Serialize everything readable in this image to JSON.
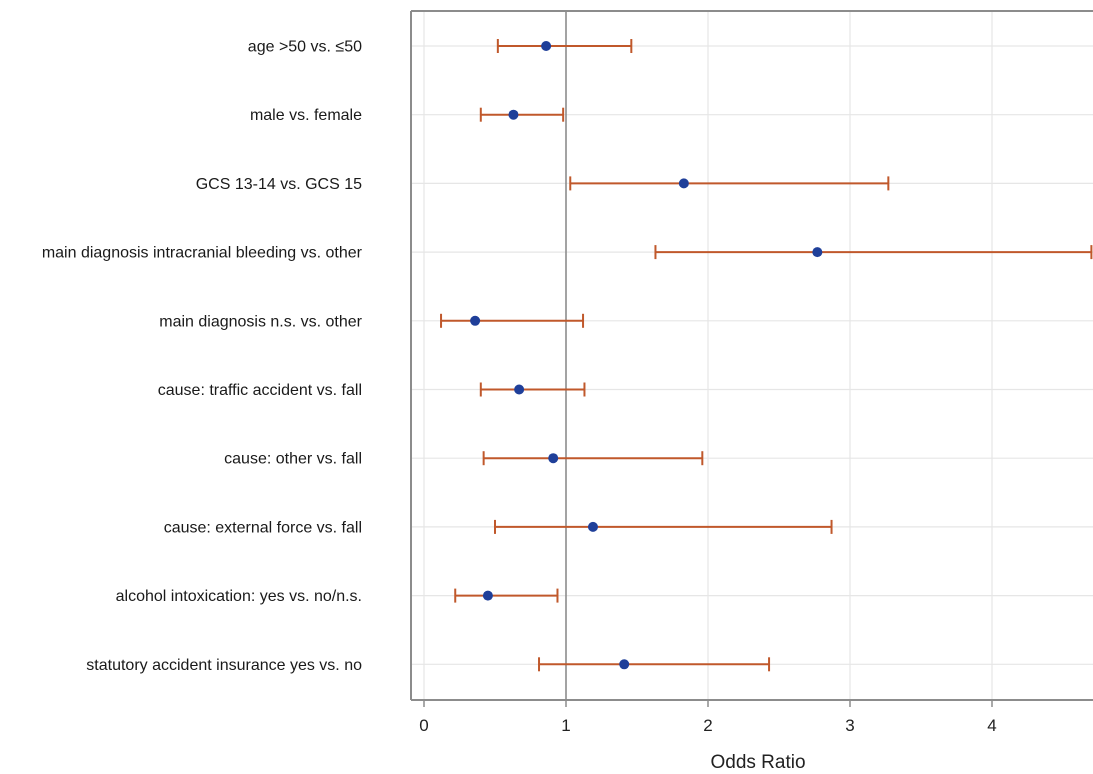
{
  "chart_data": {
    "type": "forest",
    "title": "",
    "xlabel": "Odds Ratio",
    "ylabel": "",
    "xlim": [
      -0.1,
      4.7
    ],
    "x_ticks": [
      0,
      1,
      2,
      3,
      4
    ],
    "x_tick_labels": [
      "0",
      "1",
      "2",
      "3",
      "4"
    ],
    "reference_line": 1,
    "grid": true,
    "legend": "none",
    "rows": [
      {
        "label": "age >50 vs. ≤50",
        "estimate": 0.86,
        "lower": 0.52,
        "upper": 1.46
      },
      {
        "label": "male vs. female",
        "estimate": 0.63,
        "lower": 0.4,
        "upper": 0.98
      },
      {
        "label": "GCS 13-14 vs. GCS 15",
        "estimate": 1.83,
        "lower": 1.03,
        "upper": 3.27
      },
      {
        "label": "main diagnosis intracranial bleeding vs. other",
        "estimate": 2.77,
        "lower": 1.63,
        "upper": 4.7
      },
      {
        "label": "main diagnosis n.s. vs. other",
        "estimate": 0.36,
        "lower": 0.12,
        "upper": 1.12
      },
      {
        "label": "cause: traffic accident vs. fall",
        "estimate": 0.67,
        "lower": 0.4,
        "upper": 1.13
      },
      {
        "label": "cause: other vs. fall",
        "estimate": 0.91,
        "lower": 0.42,
        "upper": 1.96
      },
      {
        "label": "cause: external force vs. fall",
        "estimate": 1.19,
        "lower": 0.5,
        "upper": 2.87
      },
      {
        "label": "alcohol intoxication: yes vs. no/n.s.",
        "estimate": 0.45,
        "lower": 0.22,
        "upper": 0.94
      },
      {
        "label": "statutory accident insurance yes vs. no",
        "estimate": 1.41,
        "lower": 0.81,
        "upper": 2.43
      }
    ],
    "colors": {
      "point": "#1f3f99",
      "interval": "#c0582b",
      "reference": "#8c8c8c",
      "grid": "#e6e6e6",
      "frame": "#8c8c8c"
    }
  }
}
